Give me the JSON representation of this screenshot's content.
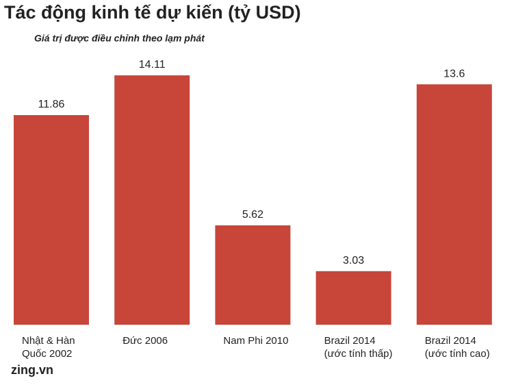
{
  "chart_data": {
    "type": "bar",
    "title": "Tác động kinh tế dự kiến (tỷ USD)",
    "subtitle": "Giá trị được điều chỉnh theo lạm phát",
    "categories": [
      "Nhật & Hàn\nQuốc 2002",
      "Đức 2006",
      "Nam Phi 2010",
      "Brazil 2014\n(ước tính thấp)",
      "Brazil 2014\n(ước tính cao)"
    ],
    "values": [
      11.86,
      14.11,
      5.62,
      3.03,
      13.6
    ],
    "color": "#c8453a",
    "source": "zing.vn"
  }
}
